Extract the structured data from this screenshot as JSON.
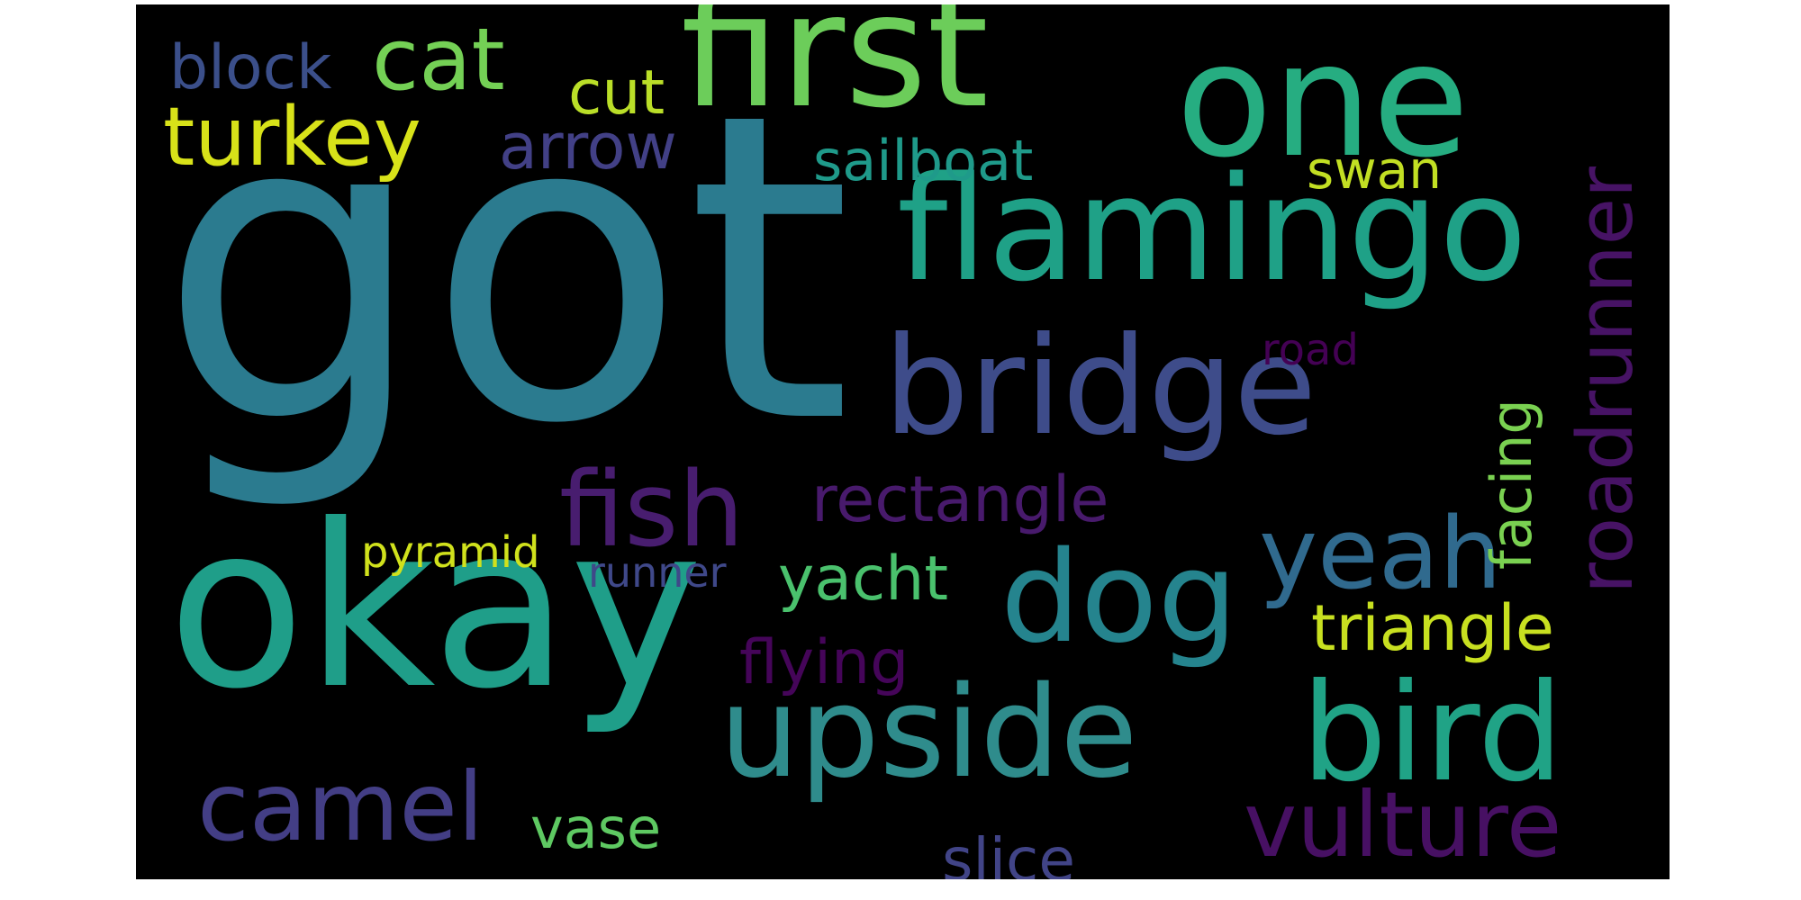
{
  "words": [
    {
      "text": "got",
      "color": "#2b7b8f"
    },
    {
      "text": "okay",
      "color": "#1f9e89"
    },
    {
      "text": "first",
      "color": "#6ccd5a"
    },
    {
      "text": "one",
      "color": "#26ad81"
    },
    {
      "text": "flamingo",
      "color": "#1fa187"
    },
    {
      "text": "bridge",
      "color": "#3e4c8a"
    },
    {
      "text": "upside",
      "color": "#2f8c8c"
    },
    {
      "text": "bird",
      "color": "#20a386"
    },
    {
      "text": "dog",
      "color": "#25848e"
    },
    {
      "text": "yeah",
      "color": "#306a8e"
    },
    {
      "text": "fish",
      "color": "#481d6f"
    },
    {
      "text": "camel",
      "color": "#433e85"
    },
    {
      "text": "vulture",
      "color": "#471063"
    },
    {
      "text": "turkey",
      "color": "#d8e219"
    },
    {
      "text": "cat",
      "color": "#74d055"
    },
    {
      "text": "block",
      "color": "#3b4f8a"
    },
    {
      "text": "cut",
      "color": "#bade28"
    },
    {
      "text": "arrow",
      "color": "#424086"
    },
    {
      "text": "sailboat",
      "color": "#1f9a8a"
    },
    {
      "text": "swan",
      "color": "#c2df23"
    },
    {
      "text": "rectangle",
      "color": "#481a6c"
    },
    {
      "text": "road",
      "color": "#440154"
    },
    {
      "text": "roadrunner",
      "color": "#471365"
    },
    {
      "text": "facing",
      "color": "#7ad151"
    },
    {
      "text": "pyramid",
      "color": "#d0e11c"
    },
    {
      "text": "runner",
      "color": "#3f4889"
    },
    {
      "text": "yacht",
      "color": "#4ac16d"
    },
    {
      "text": "triangle",
      "color": "#c8e020"
    },
    {
      "text": "flying",
      "color": "#450559"
    },
    {
      "text": "vase",
      "color": "#5ec962"
    },
    {
      "text": "slice",
      "color": "#414487"
    }
  ]
}
